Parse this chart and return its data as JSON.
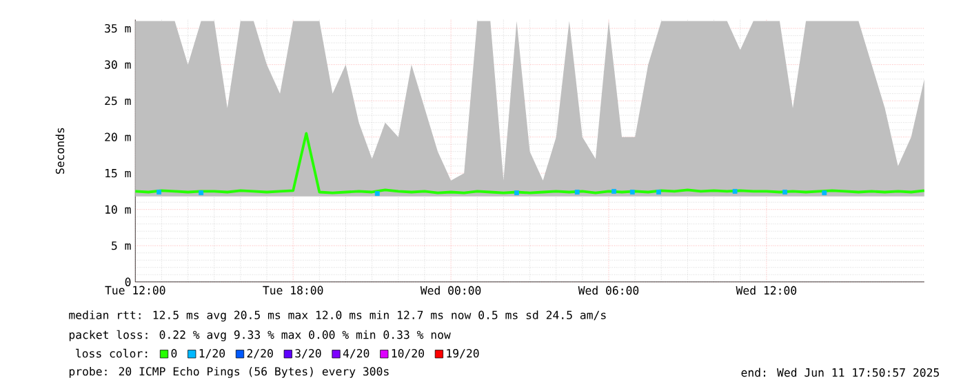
{
  "chart_data": {
    "type": "line",
    "ylabel": "Seconds",
    "legend_title": "loss color:",
    "xlim": [
      "2025-06-10T12:00",
      "2025-06-11T18:00"
    ],
    "ylim": [
      0,
      36.2
    ],
    "xticks": [
      {
        "value": "2025-06-10T12:00",
        "label": "Tue 12:00"
      },
      {
        "value": "2025-06-10T18:00",
        "label": "Tue 18:00"
      },
      {
        "value": "2025-06-11T00:00",
        "label": "Wed 00:00"
      },
      {
        "value": "2025-06-11T06:00",
        "label": "Wed 06:00"
      },
      {
        "value": "2025-06-11T12:00",
        "label": "Wed 12:00"
      }
    ],
    "yticks": [
      0,
      {
        "value": 5,
        "label": "5 m"
      },
      {
        "value": 10,
        "label": "10 m"
      },
      {
        "value": 15,
        "label": "15 m"
      },
      {
        "value": 20,
        "label": "20 m"
      },
      {
        "value": 25,
        "label": "25 m"
      },
      {
        "value": 30,
        "label": "30 m"
      },
      {
        "value": 35,
        "label": "35 m"
      }
    ],
    "grid": true,
    "legend": "bottom left",
    "series": [
      {
        "name": "0",
        "color": "#26ff00",
        "x": [
          "2025-06-10T12:00",
          "2025-06-10T12:30",
          "2025-06-10T13:00",
          "2025-06-10T13:30",
          "2025-06-10T14:00",
          "2025-06-10T14:30",
          "2025-06-10T15:00",
          "2025-06-10T15:30",
          "2025-06-10T16:00",
          "2025-06-10T16:30",
          "2025-06-10T17:00",
          "2025-06-10T17:30",
          "2025-06-10T18:00",
          "2025-06-10T18:30",
          "2025-06-10T19:00",
          "2025-06-10T19:30",
          "2025-06-10T20:00",
          "2025-06-10T20:30",
          "2025-06-10T21:00",
          "2025-06-10T21:30",
          "2025-06-10T22:00",
          "2025-06-10T22:30",
          "2025-06-10T23:00",
          "2025-06-10T23:30",
          "2025-06-11T00:00",
          "2025-06-11T00:30",
          "2025-06-11T01:00",
          "2025-06-11T01:30",
          "2025-06-11T02:00",
          "2025-06-11T02:30",
          "2025-06-11T03:00",
          "2025-06-11T03:30",
          "2025-06-11T04:00",
          "2025-06-11T04:30",
          "2025-06-11T05:00",
          "2025-06-11T05:30",
          "2025-06-11T06:00",
          "2025-06-11T06:30",
          "2025-06-11T07:00",
          "2025-06-11T07:30",
          "2025-06-11T08:00",
          "2025-06-11T08:30",
          "2025-06-11T09:00",
          "2025-06-11T09:30",
          "2025-06-11T10:00",
          "2025-06-11T10:30",
          "2025-06-11T11:00",
          "2025-06-11T11:30",
          "2025-06-11T12:00",
          "2025-06-11T12:30",
          "2025-06-11T13:00",
          "2025-06-11T13:30",
          "2025-06-11T14:00",
          "2025-06-11T14:30",
          "2025-06-11T15:00",
          "2025-06-11T15:30",
          "2025-06-11T16:00",
          "2025-06-11T16:30",
          "2025-06-11T17:00",
          "2025-06-11T17:30",
          "2025-06-11T18:00"
        ],
        "values": [
          12.5,
          12.4,
          12.6,
          12.5,
          12.4,
          12.5,
          12.5,
          12.4,
          12.6,
          12.5,
          12.4,
          12.5,
          12.6,
          20.5,
          12.4,
          12.3,
          12.4,
          12.5,
          12.4,
          12.7,
          12.5,
          12.4,
          12.5,
          12.3,
          12.4,
          12.3,
          12.5,
          12.4,
          12.3,
          12.4,
          12.3,
          12.4,
          12.5,
          12.4,
          12.5,
          12.3,
          12.5,
          12.4,
          12.5,
          12.4,
          12.6,
          12.5,
          12.7,
          12.5,
          12.6,
          12.5,
          12.6,
          12.5,
          12.5,
          12.4,
          12.5,
          12.4,
          12.5,
          12.6,
          12.5,
          12.4,
          12.5,
          12.4,
          12.5,
          12.4,
          12.6
        ],
        "lower": [
          11.8,
          11.8,
          11.8,
          11.8,
          11.8,
          11.8,
          11.8,
          11.8,
          11.8,
          11.8,
          11.8,
          11.8,
          11.8,
          11.8,
          11.8,
          11.8,
          11.8,
          11.8,
          11.8,
          11.8,
          11.8,
          11.8,
          11.8,
          11.8,
          11.8,
          11.8,
          11.8,
          11.8,
          11.8,
          11.8,
          11.8,
          11.8,
          11.8,
          11.8,
          11.8,
          11.8,
          11.8,
          11.8,
          11.8,
          11.8,
          11.8,
          11.8,
          11.8,
          11.8,
          11.8,
          11.8,
          11.8,
          11.8,
          11.8,
          11.8,
          11.8,
          11.8,
          11.8,
          11.8,
          11.8,
          11.8,
          11.8,
          11.8,
          11.8,
          11.8,
          11.8
        ],
        "upper": [
          36,
          36,
          36,
          36,
          30,
          36,
          36,
          24,
          36,
          36,
          30,
          26,
          36,
          36,
          36,
          26,
          30,
          22,
          17,
          22,
          20,
          30,
          24,
          18,
          14,
          15,
          36,
          36,
          14,
          36,
          18,
          14,
          20,
          36,
          20,
          17,
          36,
          20,
          20,
          30,
          36,
          36,
          36,
          36,
          36,
          36,
          32,
          36,
          36,
          36,
          24,
          36,
          36,
          36,
          36,
          36,
          30,
          24,
          16,
          20,
          28
        ]
      },
      {
        "name": "1/20",
        "type": "scatter",
        "marker": "square",
        "color": "#00b8ff",
        "x": [
          "2025-06-10T12:54",
          "2025-06-10T14:30",
          "2025-06-10T21:12",
          "2025-06-11T02:30",
          "2025-06-11T04:48",
          "2025-06-11T06:12",
          "2025-06-11T06:54",
          "2025-06-11T07:54",
          "2025-06-11T10:48",
          "2025-06-11T12:42",
          "2025-06-11T14:12"
        ],
        "values": [
          12.4,
          12.3,
          12.2,
          12.3,
          12.4,
          12.5,
          12.4,
          12.4,
          12.5,
          12.4,
          12.3
        ]
      },
      {
        "name": "2/20",
        "type": "scatter",
        "marker": "square",
        "color": "#0059ff"
      },
      {
        "name": "3/20",
        "type": "scatter",
        "marker": "square",
        "color": "#5e00ff"
      },
      {
        "name": "4/20",
        "type": "scatter",
        "marker": "square",
        "color": "#7e00ff"
      },
      {
        "name": "10/20",
        "type": "scatter",
        "marker": "square",
        "color": "#dd00ff"
      },
      {
        "name": "19/20",
        "type": "scatter",
        "marker": "square",
        "color": "#ff0000"
      }
    ],
    "annotations": [
      "median rtt:  12.5 ms avg  20.5 ms max  12.0 ms min  12.7 ms now  0.5 ms sd  24.5   am/s",
      "packet loss: 0.22 % avg  9.33 % max  0.00 % min  0.33 % now",
      "probe:       20 ICMP Echo Pings (56 Bytes) every 300s",
      "end: Wed Jun 11 17:50:57 2025"
    ]
  }
}
